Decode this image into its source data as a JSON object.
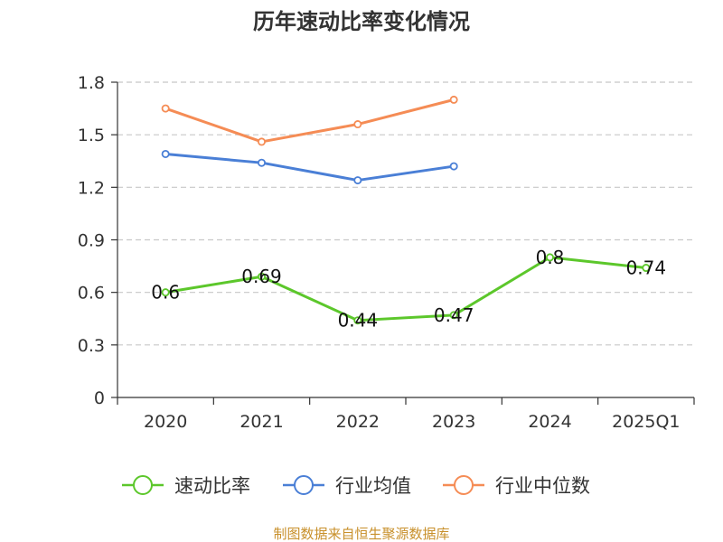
{
  "chart_data": {
    "type": "line",
    "title": "历年速动比率变化情况",
    "categories": [
      "2020",
      "2021",
      "2022",
      "2023",
      "2024",
      "2025Q1"
    ],
    "ylim": [
      0,
      1.8
    ],
    "yticks": [
      "0",
      "0.3",
      "0.6",
      "0.9",
      "1.2",
      "1.5",
      "1.8"
    ],
    "grid": true,
    "legend_position": "bottom",
    "series": [
      {
        "name": "速动比率",
        "color": "#5cc72b",
        "values": [
          0.6,
          0.69,
          0.44,
          0.47,
          0.8,
          0.74
        ],
        "labels": [
          "0.6",
          "0.69",
          "0.44",
          "0.47",
          "0.8",
          "0.74"
        ]
      },
      {
        "name": "行业均值",
        "color": "#4a7fd6",
        "values": [
          1.39,
          1.34,
          1.24,
          1.32,
          null,
          null
        ]
      },
      {
        "name": "行业中位数",
        "color": "#f58c55",
        "values": [
          1.65,
          1.46,
          1.56,
          1.7,
          null,
          null
        ]
      }
    ],
    "source": "制图数据来自恒生聚源数据库"
  }
}
